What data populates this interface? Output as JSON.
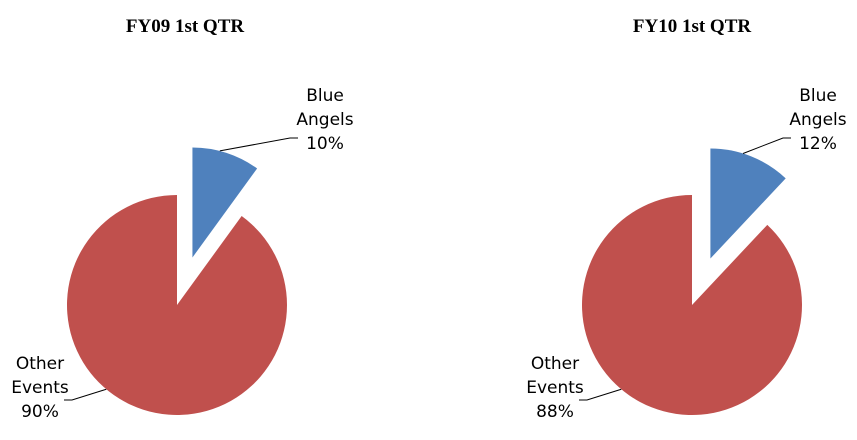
{
  "chart_data": [
    {
      "type": "pie",
      "title": "FY09 1st QTR",
      "categories": [
        "Blue Angels",
        "Other Events"
      ],
      "values": [
        10,
        90
      ],
      "value_labels": [
        "10%",
        "90%"
      ],
      "colors": [
        "#4f81bd",
        "#c0504d"
      ]
    },
    {
      "type": "pie",
      "title": "FY10 1st QTR",
      "categories": [
        "Blue Angels",
        "Other Events"
      ],
      "values": [
        12,
        88
      ],
      "value_labels": [
        "12%",
        "88%"
      ],
      "colors": [
        "#4f81bd",
        "#c0504d"
      ]
    }
  ]
}
